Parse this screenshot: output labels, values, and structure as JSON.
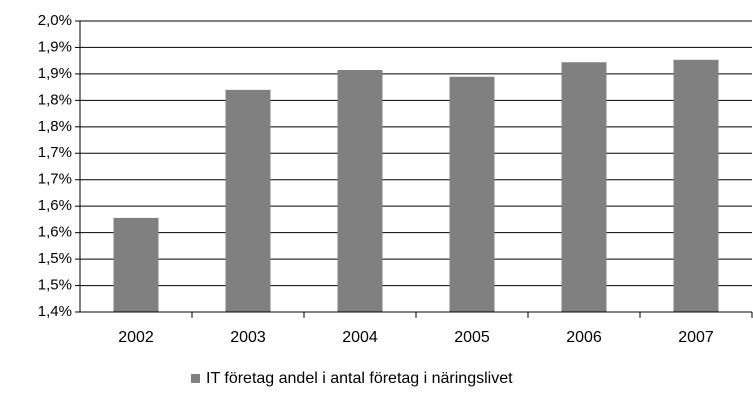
{
  "chart_data": {
    "type": "bar",
    "categories": [
      "2002",
      "2003",
      "2004",
      "2005",
      "2006",
      "2007"
    ],
    "series": [
      {
        "name": "IT företag andel i antal företag i näringslivet",
        "color": "#808080",
        "values": [
          1.594,
          1.858,
          1.899,
          1.885,
          1.915,
          1.92
        ]
      }
    ],
    "ylim": [
      1.4,
      2.0
    ],
    "yticks": [
      {
        "value": 1.4,
        "label": "1,4%"
      },
      {
        "value": 1.4545,
        "label": "1,5%"
      },
      {
        "value": 1.5091,
        "label": "1,5%"
      },
      {
        "value": 1.5636,
        "label": "1,6%"
      },
      {
        "value": 1.6182,
        "label": "1,6%"
      },
      {
        "value": 1.6727,
        "label": "1,7%"
      },
      {
        "value": 1.7273,
        "label": "1,7%"
      },
      {
        "value": 1.7818,
        "label": "1,8%"
      },
      {
        "value": 1.8364,
        "label": "1,8%"
      },
      {
        "value": 1.8909,
        "label": "1,9%"
      },
      {
        "value": 1.9455,
        "label": "1,9%"
      },
      {
        "value": 2.0,
        "label": "2,0%"
      }
    ],
    "grid": true,
    "legend": "bottom"
  }
}
